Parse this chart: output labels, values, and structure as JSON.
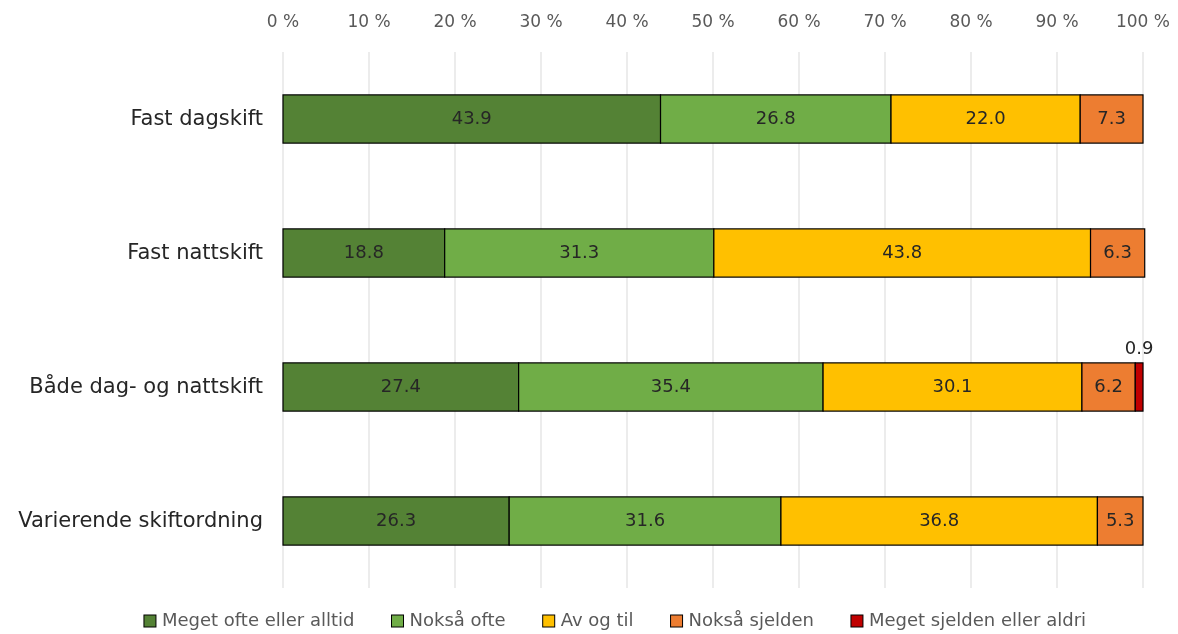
{
  "chart_data": {
    "type": "bar",
    "orientation": "horizontal",
    "stacked": true,
    "categories": [
      "Fast dagskift",
      "Fast nattskift",
      "Både dag- og nattskift",
      "Varierende skiftordning"
    ],
    "series": [
      {
        "name": "Meget ofte eller alltid",
        "color": "#548235",
        "values": [
          43.9,
          18.8,
          27.4,
          26.3
        ],
        "value_labels": [
          "43.9",
          "18.8",
          "27.4",
          "26.3"
        ]
      },
      {
        "name": "Nokså ofte",
        "color": "#70ad47",
        "values": [
          26.8,
          31.3,
          35.4,
          31.6
        ],
        "value_labels": [
          "26.8",
          "31.3",
          "35.4",
          "31.6"
        ]
      },
      {
        "name": "Av og til",
        "color": "#ffc000",
        "values": [
          22.0,
          43.8,
          30.1,
          36.8
        ],
        "value_labels": [
          "22.0",
          "43.8",
          "30.1",
          "36.8"
        ]
      },
      {
        "name": "Nokså sjelden",
        "color": "#ed7d31",
        "values": [
          7.3,
          6.3,
          6.2,
          5.3
        ],
        "value_labels": [
          "7.3",
          "6.3",
          "6.2",
          "5.3"
        ]
      },
      {
        "name": "Meget sjelden eller aldri",
        "color": "#c00000",
        "values": [
          null,
          null,
          0.9,
          null
        ],
        "value_labels": [
          null,
          null,
          "0.9",
          null
        ]
      }
    ],
    "xlim": [
      0,
      100
    ],
    "xticks": [
      {
        "value": 0,
        "label": "0 %"
      },
      {
        "value": 10,
        "label": "10 %"
      },
      {
        "value": 20,
        "label": "20 %"
      },
      {
        "value": 30,
        "label": "30 %"
      },
      {
        "value": 40,
        "label": "40 %"
      },
      {
        "value": 50,
        "label": "50 %"
      },
      {
        "value": 60,
        "label": "60 %"
      },
      {
        "value": 70,
        "label": "70 %"
      },
      {
        "value": 80,
        "label": "80 %"
      },
      {
        "value": 90,
        "label": "90 %"
      },
      {
        "value": 100,
        "label": "100 %"
      }
    ],
    "grid": "x",
    "legend": "bottom"
  }
}
